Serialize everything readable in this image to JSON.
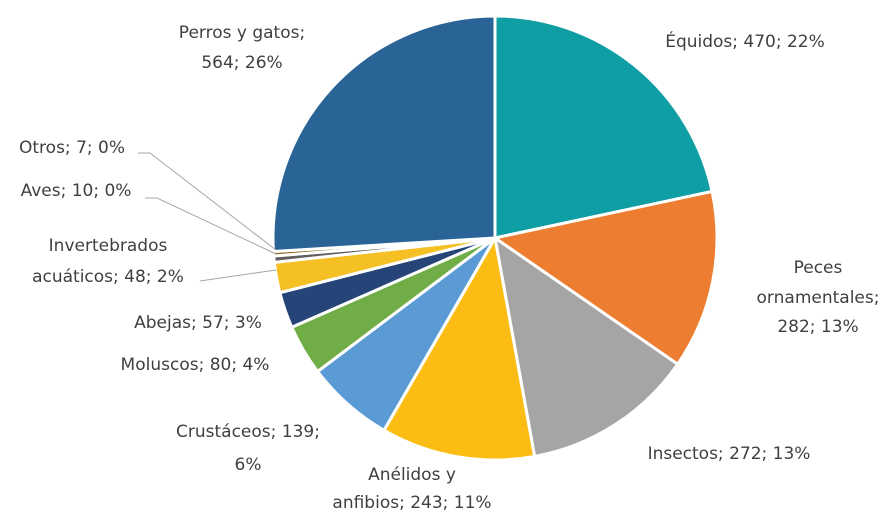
{
  "chart_data": {
    "type": "pie",
    "labels": [
      [
        "Équidos; 470; 22%"
      ],
      [
        "Peces",
        "ornamentales;",
        "282; 13%"
      ],
      [
        "Insectos; 272; 13%"
      ],
      [
        "Anélidos y",
        "anfibios; 243; 11%"
      ],
      [
        "Crustáceos; 139;",
        "6%"
      ],
      [
        "Moluscos; 80; 4%"
      ],
      [
        "Abejas; 57; 3%"
      ],
      [
        "Invertebrados",
        "acuáticos; 48; 2%"
      ],
      [
        "Aves; 10; 0%"
      ],
      [
        "Otros; 7; 0%"
      ],
      [
        "Perros y gatos;",
        "564; 26%"
      ]
    ],
    "values": [
      470,
      282,
      272,
      243,
      139,
      80,
      57,
      48,
      10,
      7,
      564
    ],
    "colors": [
      "#0e9ea3",
      "#ed7d31",
      "#a5a5a5",
      "#fbbd14",
      "#5b9bd5",
      "#70ad47",
      "#264478",
      "#f5c024",
      "#5f5f5f",
      "#8c6d1f",
      "#2a6496"
    ]
  }
}
